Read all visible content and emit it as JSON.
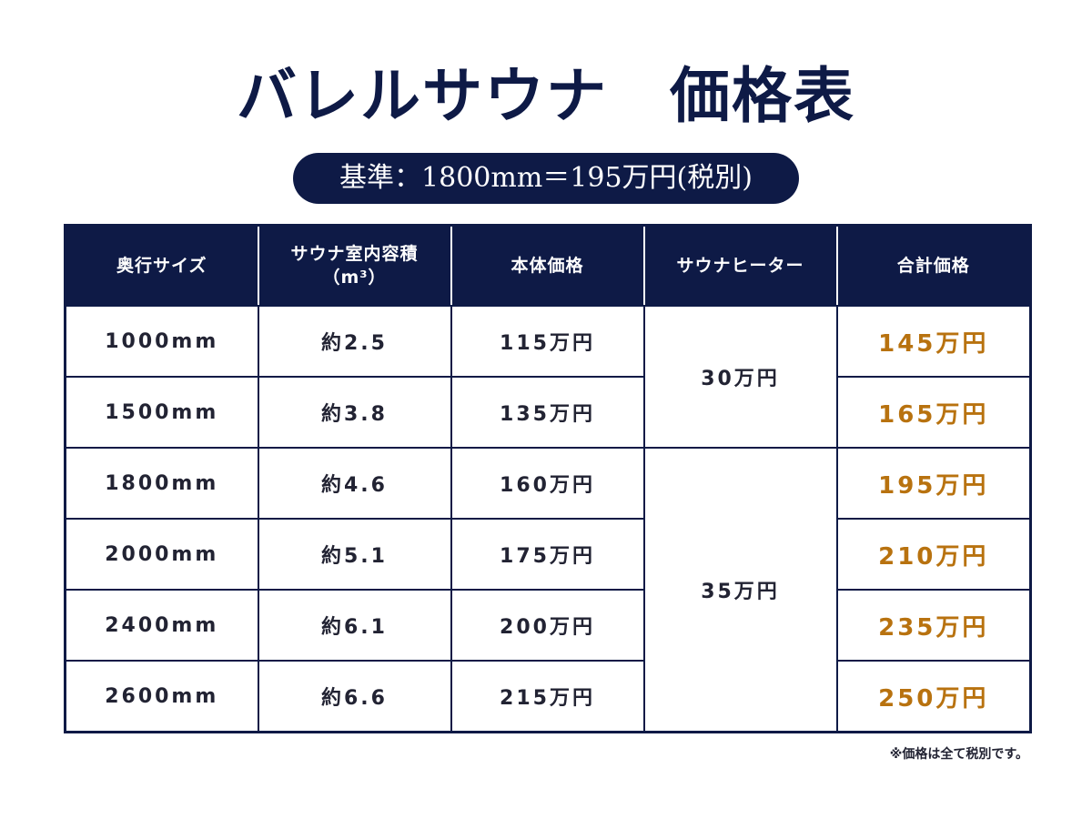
{
  "title": "バレルサウナ　価格表",
  "base_label": "基準：1800mm＝195万円(税別)",
  "table": {
    "headers": [
      "奥行サイズ",
      "サウナ室内容積\n（m³）",
      "本体価格",
      "サウナヒーター",
      "合計価格"
    ],
    "heater_groups": [
      "30万円",
      "35万円"
    ],
    "rows": [
      {
        "depth": "1000mm",
        "volume": "約2.5",
        "body": "115万円",
        "total": "145万円"
      },
      {
        "depth": "1500mm",
        "volume": "約3.8",
        "body": "135万円",
        "total": "165万円"
      },
      {
        "depth": "1800mm",
        "volume": "約4.6",
        "body": "160万円",
        "total": "195万円"
      },
      {
        "depth": "2000mm",
        "volume": "約5.1",
        "body": "175万円",
        "total": "210万円"
      },
      {
        "depth": "2400mm",
        "volume": "約6.1",
        "body": "200万円",
        "total": "235万円"
      },
      {
        "depth": "2600mm",
        "volume": "約6.6",
        "body": "215万円",
        "total": "250万円"
      }
    ]
  },
  "note": "※価格は全て税別です。",
  "colors": {
    "navy": "#0e1a46",
    "total_accent": "#b8720f"
  }
}
